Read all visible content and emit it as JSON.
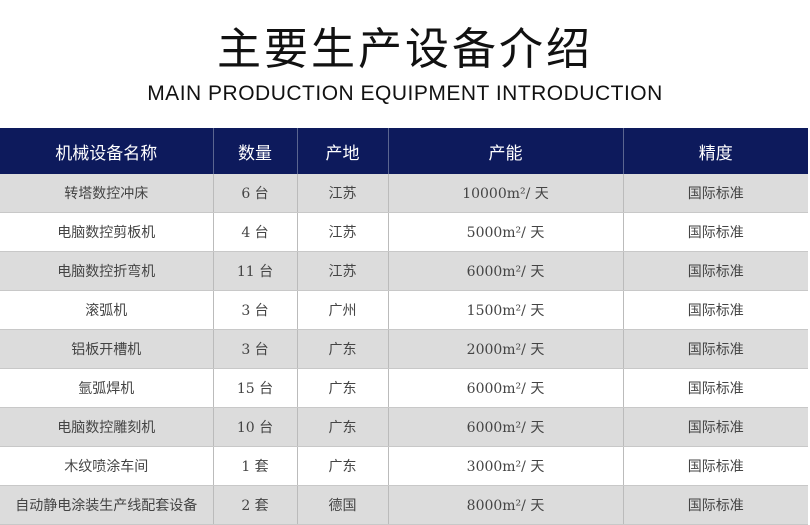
{
  "title": "主要生产设备介绍",
  "subtitle": "MAIN PRODUCTION EQUIPMENT INTRODUCTION",
  "colors": {
    "header_bg": "#0d1a5c",
    "row_alt": "#dcdcdc"
  },
  "table": {
    "headers": [
      "机械设备名称",
      "数量",
      "产地",
      "产能",
      "精度"
    ],
    "rows": [
      [
        "转塔数控冲床",
        "6 台",
        "江苏",
        "10000m²/ 天",
        "国际标准"
      ],
      [
        "电脑数控剪板机",
        "4 台",
        "江苏",
        "5000m²/ 天",
        "国际标准"
      ],
      [
        "电脑数控折弯机",
        "11 台",
        "江苏",
        "6000m²/ 天",
        "国际标准"
      ],
      [
        "滚弧机",
        "3 台",
        "广州",
        "1500m²/ 天",
        "国际标准"
      ],
      [
        "铝板开槽机",
        "3 台",
        "广东",
        "2000m²/ 天",
        "国际标准"
      ],
      [
        "氩弧焊机",
        "15 台",
        "广东",
        "6000m²/ 天",
        "国际标准"
      ],
      [
        "电脑数控雕刻机",
        "10 台",
        "广东",
        "6000m²/ 天",
        "国际标准"
      ],
      [
        "木纹喷涂车间",
        "1 套",
        "广东",
        "3000m²/ 天",
        "国际标准"
      ],
      [
        "自动静电涂装生产线配套设备",
        "2 套",
        "德国",
        "8000m²/ 天",
        "国际标准"
      ]
    ]
  }
}
